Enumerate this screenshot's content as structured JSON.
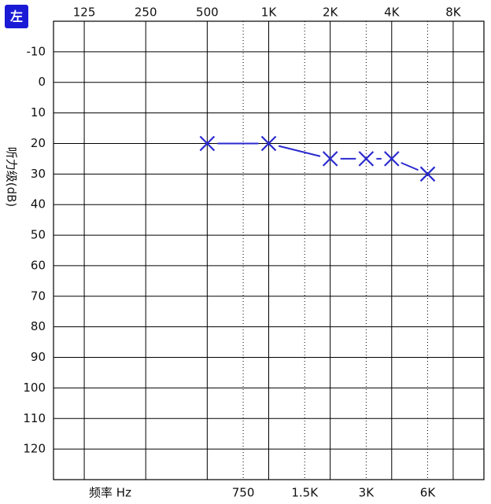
{
  "badge": "左",
  "chart_data": {
    "type": "audiogram",
    "y_label": "听力级(dB)",
    "x_label": "频率 Hz",
    "xscale": "log",
    "xlim": [
      88.39,
      11313.71
    ],
    "ylim": [
      -20,
      130
    ],
    "y_inverted": true,
    "xticks": [
      125,
      250,
      500,
      {
        "value": 1000,
        "label": "1K"
      },
      {
        "value": 2000,
        "label": "2K"
      },
      {
        "value": 4000,
        "label": "4K"
      },
      {
        "value": 8000,
        "label": "8K"
      }
    ],
    "xticks_minor": [
      750,
      {
        "value": 1500,
        "label": "1.5K"
      },
      {
        "value": 3000,
        "label": "3K"
      },
      {
        "value": 6000,
        "label": "6K"
      }
    ],
    "yticks": [
      -10,
      0,
      10,
      20,
      30,
      40,
      50,
      60,
      70,
      80,
      90,
      100,
      110,
      120
    ],
    "grid": true,
    "x": [
      500,
      1000,
      2000,
      3000,
      4000,
      6000
    ],
    "values": [
      20,
      20,
      25,
      25,
      25,
      30
    ],
    "color": "#2a2ad0",
    "marker": "x"
  }
}
